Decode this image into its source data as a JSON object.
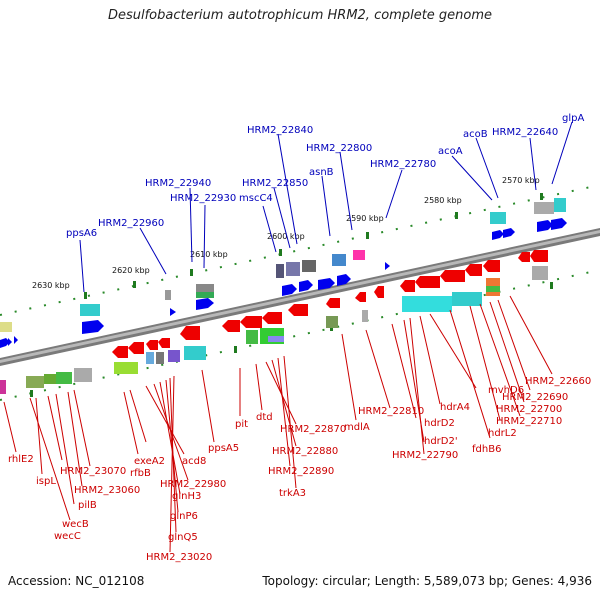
{
  "title": "Desulfobacterium autotrophicum HRM2, complete genome",
  "footer": {
    "accession": "Accession: NC_012108",
    "topology": "Topology: circular; Length: 5,589,073 bp; Genes: 4,936"
  },
  "kbp_marks": [
    "2630 kbp",
    "2620 kbp",
    "2610 kbp",
    "2600 kbp",
    "2590 kbp",
    "2580 kbp",
    "2570 kbp"
  ],
  "top_labels": [
    "ppsA6",
    "HRM2_22960",
    "HRM2_22940",
    "HRM2_22930",
    "HRM2_22850",
    "mscC4",
    "HRM2_22840",
    "asnB",
    "HRM2_22800",
    "HRM2_22780",
    "acoA",
    "acoB",
    "HRM2_22640",
    "glpA"
  ],
  "bottom_labels": [
    "rhlE2",
    "ispL",
    "HRM2_23070",
    "HRM2_23060",
    "pilB",
    "wecB",
    "wecC",
    "exeA2",
    "rfbB",
    "HRM2_22980",
    "acd8",
    "glnH3",
    "glnP6",
    "glnQ5",
    "HRM2_23020",
    "ppsA5",
    "pit",
    "dtd",
    "HRM2_22870",
    "HRM2_22880",
    "HRM2_22890",
    "trkA3",
    "mdlA",
    "HRM2_22810",
    "hdrD2",
    "hdrD2'",
    "HRM2_22790",
    "hdrA4",
    "fdhB6",
    "mvhD6",
    "hdrL2",
    "HRM2_22710",
    "HRM2_22700",
    "HRM2_22690",
    "HRM2_22660"
  ],
  "colors": {
    "forward_strand": "#0000ee",
    "reverse_strand": "#ee0000",
    "top_label_color": "#0000bb",
    "bottom_label_color": "#cc0000",
    "backbone": "#808080",
    "tick": "#228822"
  }
}
